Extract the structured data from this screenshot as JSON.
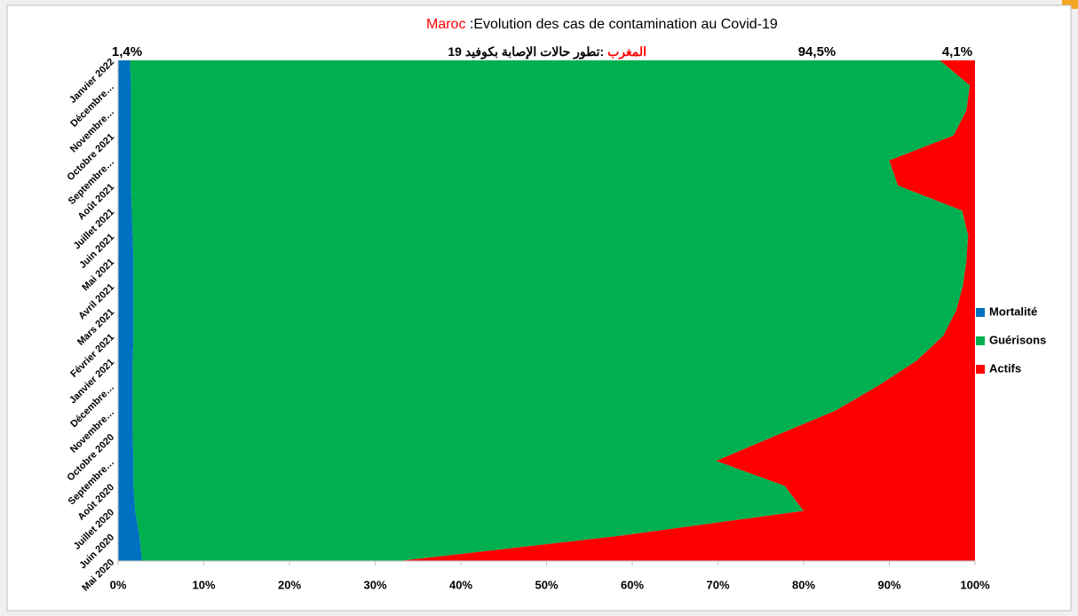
{
  "chart_data": {
    "type": "stacked_area_horizontal",
    "title_parts": [
      "Maroc",
      " :Evolution des cas de contamination  au Covid-19"
    ],
    "subtitle_parts": [
      "المغرب",
      " :تطور حالات الإصابة بكوفيد 19"
    ],
    "title_colors": [
      "#ff0000",
      "#000000"
    ],
    "annotations": [
      "1,4%",
      "94,5%",
      "4,1%"
    ],
    "categories": [
      "Mai 2020",
      "Juin 2020",
      "Juillet 2020",
      "Août 2020",
      "Septembre…",
      "Octobre 2020",
      "Novembre…",
      "Décembre…",
      "Janvier 2021",
      "Février 2021",
      "Mars 2021",
      "Avril 2021",
      "Mai 2021",
      "Juin 2021",
      "Juillet 2021",
      "Août 2021",
      "Septembre…",
      "Octobre 2021",
      "Novembre…",
      "Décembre…",
      "Janvier 2022"
    ],
    "series": [
      {
        "name": "Mortalité",
        "color": "#0070c0",
        "values": [
          2.8,
          2.5,
          2.0,
          1.8,
          1.8,
          1.7,
          1.7,
          1.7,
          1.7,
          1.8,
          1.8,
          1.8,
          1.8,
          1.7,
          1.6,
          1.5,
          1.5,
          1.5,
          1.5,
          1.5,
          1.4
        ]
      },
      {
        "name": "Guérisons",
        "color": "#00b050",
        "values": [
          30,
          56,
          78,
          76,
          68,
          75,
          82,
          87,
          91.5,
          94.5,
          96,
          96.8,
          97.2,
          97.5,
          96.9,
          89.5,
          88.5,
          96,
          97.5,
          97.9,
          94.5
        ]
      },
      {
        "name": "Actifs",
        "color": "#ff0000",
        "values": [
          67.2,
          41.5,
          20,
          22.2,
          30.2,
          23.3,
          16.3,
          11.3,
          6.8,
          3.7,
          2.2,
          1.4,
          1.0,
          0.8,
          1.5,
          9,
          10,
          2.5,
          1.0,
          0.6,
          4.1
        ]
      }
    ],
    "xlim": [
      0,
      100
    ],
    "xticks": [
      {
        "value": 0,
        "label": "0%"
      },
      {
        "value": 10,
        "label": "10%"
      },
      {
        "value": 20,
        "label": "20%"
      },
      {
        "value": 30,
        "label": "30%"
      },
      {
        "value": 40,
        "label": "40%"
      },
      {
        "value": 50,
        "label": "50%"
      },
      {
        "value": 60,
        "label": "60%"
      },
      {
        "value": 70,
        "label": "70%"
      },
      {
        "value": 80,
        "label": "80%"
      },
      {
        "value": 90,
        "label": "90%"
      },
      {
        "value": 100,
        "label": "100%"
      }
    ],
    "legend": "right"
  }
}
